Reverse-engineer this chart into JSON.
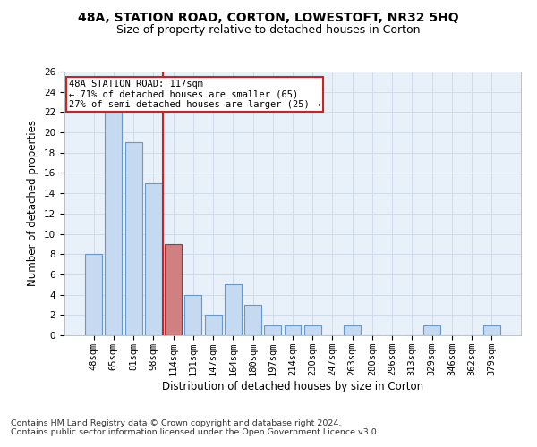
{
  "title1": "48A, STATION ROAD, CORTON, LOWESTOFT, NR32 5HQ",
  "title2": "Size of property relative to detached houses in Corton",
  "xlabel": "Distribution of detached houses by size in Corton",
  "ylabel": "Number of detached properties",
  "footer1": "Contains HM Land Registry data © Crown copyright and database right 2024.",
  "footer2": "Contains public sector information licensed under the Open Government Licence v3.0.",
  "categories": [
    "48sqm",
    "65sqm",
    "81sqm",
    "98sqm",
    "114sqm",
    "131sqm",
    "147sqm",
    "164sqm",
    "180sqm",
    "197sqm",
    "214sqm",
    "230sqm",
    "247sqm",
    "263sqm",
    "280sqm",
    "296sqm",
    "313sqm",
    "329sqm",
    "346sqm",
    "362sqm",
    "379sqm"
  ],
  "values": [
    8,
    22,
    19,
    15,
    9,
    4,
    2,
    5,
    3,
    1,
    1,
    1,
    0,
    1,
    0,
    0,
    0,
    1,
    0,
    0,
    1
  ],
  "highlight_index": 4,
  "highlight_bar_color": "#d08080",
  "normal_bar_color": "#c5d9f0",
  "normal_bar_edge": "#6699cc",
  "highlight_bar_edge": "#aa3333",
  "annotation_text": "48A STATION ROAD: 117sqm\n← 71% of detached houses are smaller (65)\n27% of semi-detached houses are larger (25) →",
  "annotation_box_color": "#ffffff",
  "annotation_box_edge": "#cc2222",
  "vline_color": "#cc2222",
  "ylim": [
    0,
    26
  ],
  "yticks": [
    0,
    2,
    4,
    6,
    8,
    10,
    12,
    14,
    16,
    18,
    20,
    22,
    24,
    26
  ],
  "grid_color": "#d0dcea",
  "bg_color": "#e8f0fa",
  "title1_fontsize": 10,
  "title2_fontsize": 9,
  "xlabel_fontsize": 8.5,
  "ylabel_fontsize": 8.5,
  "tick_fontsize": 7.5,
  "footer_fontsize": 6.8
}
